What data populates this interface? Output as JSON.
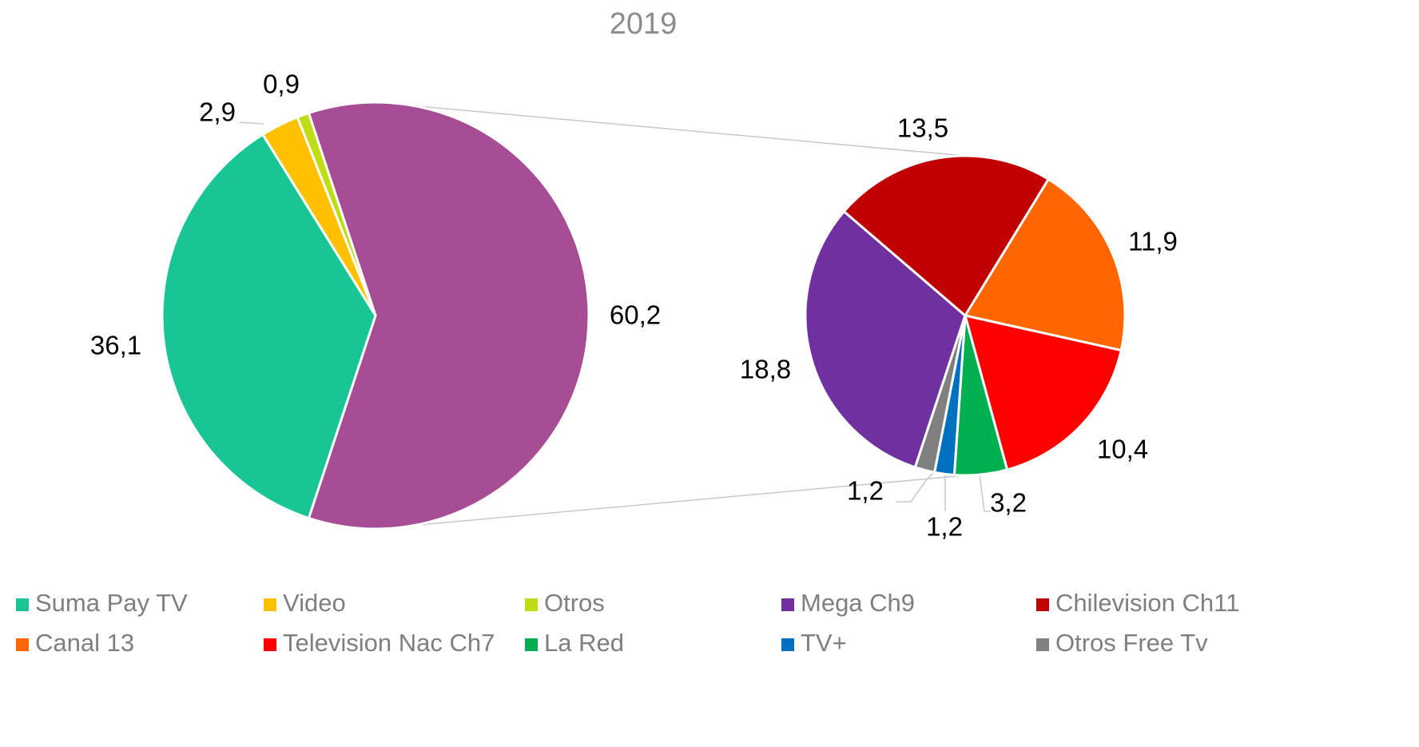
{
  "chart_data": {
    "type": "pie",
    "title": "2019",
    "pies": [
      {
        "categories": [
          "Suma Pay TV",
          "Video",
          "Otros",
          null
        ],
        "values": [
          36.1,
          2.9,
          0.9,
          60.2
        ],
        "value_labels": [
          "36,1",
          "2,9",
          "0,9",
          "60,2"
        ],
        "colors": [
          "#17c694",
          "#ffc000",
          "#bedd14",
          "#a64d96"
        ]
      },
      {
        "categories": [
          "Mega Ch9",
          "Chilevision Ch11",
          "Canal 13",
          "Television Nac Ch7",
          "La Red",
          "TV+",
          "Otros Free Tv"
        ],
        "values": [
          18.8,
          13.5,
          11.9,
          10.4,
          3.2,
          1.2,
          1.2
        ],
        "value_labels": [
          "18,8",
          "13,5",
          "11,9",
          "10,4",
          "3,2",
          "1,2",
          "1,2"
        ],
        "colors": [
          "#7030a0",
          "#c00000",
          "#ff6600",
          "#ff0000",
          "#00b050",
          "#0070c0",
          "#808080"
        ]
      }
    ]
  }
}
